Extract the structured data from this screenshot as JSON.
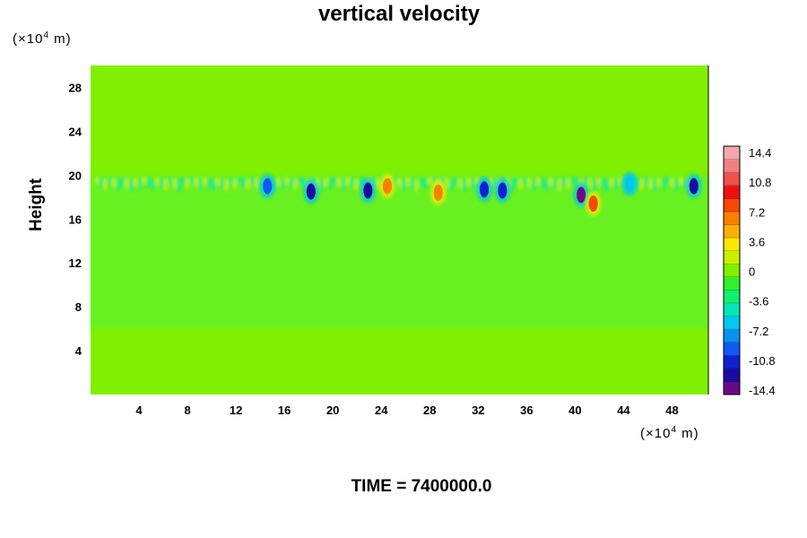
{
  "chart_data": {
    "type": "heatmap",
    "title": "vertical velocity",
    "ylabel": "Height",
    "y_unit_prefix": "(×10",
    "y_unit_exp": "4",
    "y_unit_suffix": " m)",
    "x_unit_prefix": "(×10",
    "x_unit_exp": "4",
    "x_unit_suffix": " m)",
    "xlim": [
      0,
      51
    ],
    "ylim": [
      0,
      30
    ],
    "x_ticks": [
      4,
      8,
      12,
      16,
      20,
      24,
      28,
      32,
      36,
      40,
      44,
      48
    ],
    "y_ticks": [
      4,
      8,
      12,
      16,
      20,
      24,
      28
    ],
    "background_value": 0,
    "layer_top": 20,
    "features": [
      {
        "x": 14.6,
        "y": 19.0,
        "value": -9.0
      },
      {
        "x": 18.2,
        "y": 18.5,
        "value": -12.6
      },
      {
        "x": 22.9,
        "y": 18.6,
        "value": -12.6
      },
      {
        "x": 24.5,
        "y": 19.0,
        "value": 5.4
      },
      {
        "x": 28.7,
        "y": 18.4,
        "value": 6.3
      },
      {
        "x": 32.5,
        "y": 18.7,
        "value": -10.8
      },
      {
        "x": 34.0,
        "y": 18.6,
        "value": -10.8
      },
      {
        "x": 40.5,
        "y": 18.2,
        "value": -14.4
      },
      {
        "x": 41.5,
        "y": 17.4,
        "value": 8.1
      },
      {
        "x": 44.5,
        "y": 19.2,
        "value": -5.4
      },
      {
        "x": 49.8,
        "y": 19.0,
        "value": -12.6
      }
    ],
    "colorbar": {
      "min": -14.4,
      "max": 14.4,
      "labels": [
        "14.4",
        "10.8",
        "7.2",
        "3.6",
        "0",
        "-3.6",
        "-7.2",
        "-10.8",
        "-14.4"
      ],
      "colors": [
        "#6a0a8a",
        "#1a0ca0",
        "#1020d0",
        "#1058f0",
        "#0c90f0",
        "#00c8ec",
        "#00e8b8",
        "#10f070",
        "#30f030",
        "#80f000",
        "#c8f000",
        "#f8e800",
        "#f8b000",
        "#f88000",
        "#f84800",
        "#f01010",
        "#f05050",
        "#f08080",
        "#f0a8a8"
      ]
    },
    "time_label": "TIME = 7400000.0"
  }
}
